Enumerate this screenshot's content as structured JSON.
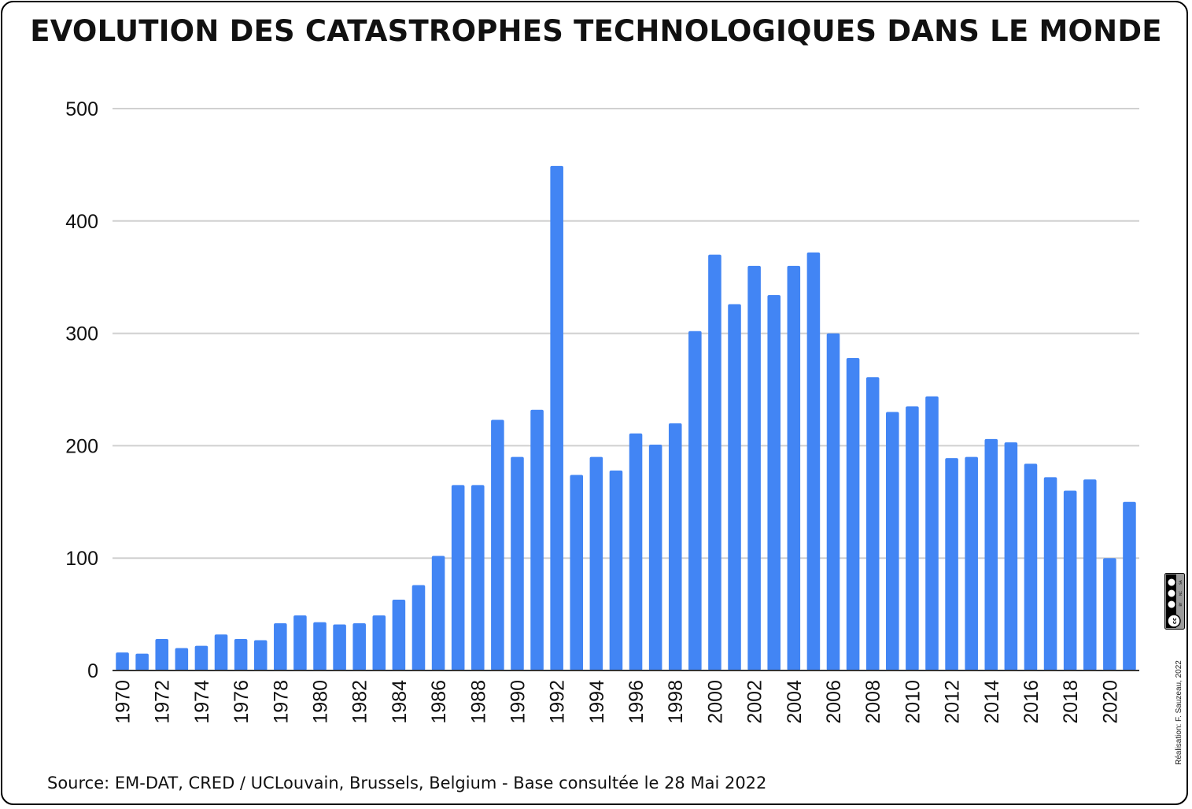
{
  "chart_data": {
    "type": "bar",
    "title": "EVOLUTION DES CATASTROPHES TECHNOLOGIQUES DANS LE MONDE",
    "xlabel": "",
    "ylabel": "",
    "ylim": [
      0,
      500
    ],
    "yticks": [
      0,
      100,
      200,
      300,
      400,
      500
    ],
    "grid": true,
    "legend": "none",
    "bar_color": "#4285f4",
    "categories": [
      "1970",
      "1971",
      "1972",
      "1973",
      "1974",
      "1975",
      "1976",
      "1977",
      "1978",
      "1979",
      "1980",
      "1981",
      "1982",
      "1983",
      "1984",
      "1985",
      "1986",
      "1987",
      "1988",
      "1989",
      "1990",
      "1991",
      "1992",
      "1993",
      "1994",
      "1995",
      "1996",
      "1997",
      "1998",
      "1999",
      "2000",
      "2001",
      "2002",
      "2003",
      "2004",
      "2005",
      "2006",
      "2007",
      "2008",
      "2009",
      "2010",
      "2011",
      "2012",
      "2013",
      "2014",
      "2015",
      "2016",
      "2017",
      "2018",
      "2019",
      "2020",
      "2021"
    ],
    "x_tick_labels": [
      "1970",
      "1972",
      "1974",
      "1976",
      "1978",
      "1980",
      "1982",
      "1984",
      "1986",
      "1988",
      "1990",
      "1992",
      "1994",
      "1996",
      "1998",
      "2000",
      "2002",
      "2004",
      "2006",
      "2008",
      "2010",
      "2012",
      "2014",
      "2016",
      "2018",
      "2020"
    ],
    "values": [
      16,
      15,
      28,
      20,
      22,
      32,
      28,
      27,
      42,
      49,
      43,
      41,
      42,
      49,
      63,
      76,
      102,
      165,
      165,
      223,
      190,
      232,
      449,
      174,
      190,
      178,
      211,
      201,
      220,
      302,
      370,
      326,
      360,
      334,
      360,
      372,
      300,
      278,
      261,
      230,
      235,
      244,
      189,
      190,
      206,
      203,
      184,
      172,
      160,
      170,
      100,
      150
    ]
  },
  "source": "Source: EM-DAT, CRED / UCLouvain, Brussels, Belgium - Base consultée le 28 Mai 2022",
  "credit": "Réalisation: F. Sauzeau, 2022",
  "license_badge": {
    "icon": "cc-by-nc-sa-icon",
    "labels": [
      "BY",
      "NC",
      "SA"
    ]
  }
}
